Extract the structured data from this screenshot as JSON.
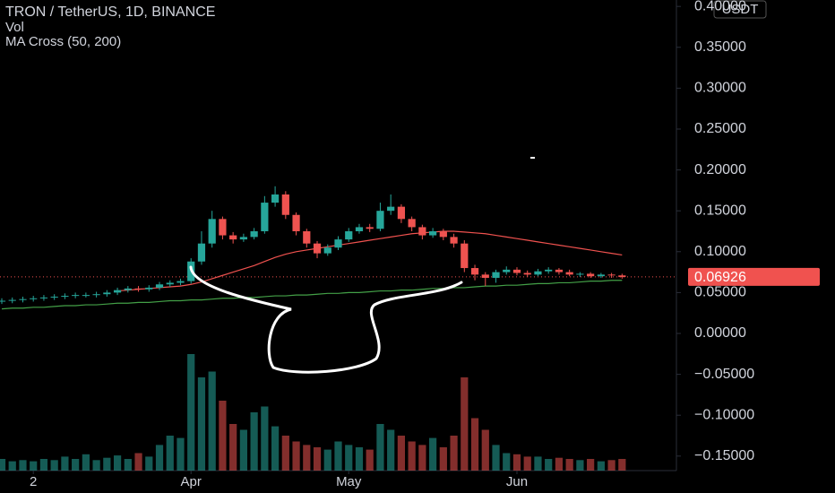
{
  "chart_data": {
    "type": "candlestick",
    "title": "TRON / TetherUS, 1D, BINANCE",
    "volume_label": "Vol",
    "indicator_label": "MA Cross (50, 200)",
    "currency": "USDT",
    "up_color": "#26a69a",
    "down_color": "#ef5350",
    "x": [
      0,
      2,
      4,
      6,
      8,
      10,
      12,
      14,
      16,
      18,
      20,
      22,
      24,
      26,
      28,
      30,
      32,
      34,
      36,
      38,
      40,
      42,
      44,
      46,
      48,
      50,
      52,
      54,
      56,
      58,
      60,
      62,
      64,
      66,
      68,
      70,
      72,
      74,
      76,
      78,
      80,
      82,
      84,
      86,
      88,
      90,
      92,
      94,
      96,
      98,
      100,
      102,
      104,
      106,
      108,
      110,
      112,
      114,
      116,
      118
    ],
    "open": [
      0.039,
      0.04,
      0.041,
      0.042,
      0.043,
      0.044,
      0.045,
      0.046,
      0.047,
      0.047,
      0.048,
      0.05,
      0.053,
      0.055,
      0.054,
      0.056,
      0.06,
      0.062,
      0.064,
      0.088,
      0.11,
      0.14,
      0.12,
      0.115,
      0.118,
      0.125,
      0.16,
      0.17,
      0.145,
      0.125,
      0.11,
      0.098,
      0.105,
      0.115,
      0.125,
      0.13,
      0.128,
      0.15,
      0.155,
      0.14,
      0.13,
      0.12,
      0.125,
      0.118,
      0.11,
      0.08,
      0.072,
      0.068,
      0.075,
      0.078,
      0.074,
      0.072,
      0.076,
      0.078,
      0.075,
      0.072,
      0.073,
      0.07,
      0.072,
      0.071
    ],
    "high": [
      0.043,
      0.044,
      0.045,
      0.046,
      0.047,
      0.048,
      0.049,
      0.05,
      0.05,
      0.051,
      0.053,
      0.056,
      0.058,
      0.058,
      0.059,
      0.063,
      0.065,
      0.067,
      0.092,
      0.125,
      0.15,
      0.143,
      0.124,
      0.122,
      0.129,
      0.168,
      0.18,
      0.174,
      0.148,
      0.128,
      0.113,
      0.109,
      0.119,
      0.129,
      0.134,
      0.134,
      0.16,
      0.17,
      0.158,
      0.143,
      0.133,
      0.129,
      0.128,
      0.122,
      0.114,
      0.084,
      0.075,
      0.078,
      0.082,
      0.081,
      0.077,
      0.079,
      0.081,
      0.08,
      0.078,
      0.075,
      0.075,
      0.074,
      0.074,
      0.073
    ],
    "low": [
      0.036,
      0.037,
      0.038,
      0.039,
      0.04,
      0.041,
      0.042,
      0.043,
      0.044,
      0.044,
      0.045,
      0.047,
      0.05,
      0.051,
      0.051,
      0.053,
      0.057,
      0.059,
      0.061,
      0.084,
      0.105,
      0.115,
      0.11,
      0.112,
      0.115,
      0.122,
      0.155,
      0.14,
      0.12,
      0.105,
      0.092,
      0.095,
      0.102,
      0.112,
      0.122,
      0.124,
      0.125,
      0.145,
      0.135,
      0.125,
      0.115,
      0.117,
      0.114,
      0.105,
      0.075,
      0.065,
      0.058,
      0.062,
      0.072,
      0.071,
      0.069,
      0.07,
      0.073,
      0.072,
      0.07,
      0.069,
      0.068,
      0.068,
      0.068,
      0.067
    ],
    "close": [
      0.04,
      0.041,
      0.042,
      0.043,
      0.044,
      0.045,
      0.046,
      0.047,
      0.047,
      0.048,
      0.05,
      0.053,
      0.055,
      0.054,
      0.056,
      0.06,
      0.062,
      0.064,
      0.088,
      0.11,
      0.14,
      0.12,
      0.115,
      0.118,
      0.125,
      0.16,
      0.17,
      0.145,
      0.125,
      0.11,
      0.098,
      0.105,
      0.115,
      0.125,
      0.13,
      0.128,
      0.15,
      0.155,
      0.14,
      0.13,
      0.12,
      0.125,
      0.118,
      0.11,
      0.08,
      0.072,
      0.068,
      0.075,
      0.078,
      0.074,
      0.072,
      0.076,
      0.078,
      0.075,
      0.072,
      0.073,
      0.07,
      0.072,
      0.071,
      0.069
    ],
    "volume": [
      10,
      8,
      9,
      8,
      10,
      9,
      12,
      10,
      14,
      9,
      11,
      13,
      10,
      15,
      12,
      22,
      30,
      28,
      100,
      80,
      85,
      60,
      40,
      35,
      50,
      55,
      38,
      30,
      25,
      22,
      20,
      18,
      25,
      22,
      20,
      18,
      40,
      35,
      30,
      25,
      22,
      28,
      20,
      30,
      80,
      45,
      35,
      22,
      15,
      14,
      12,
      12,
      10,
      11,
      10,
      9,
      10,
      8,
      9,
      10
    ],
    "lines": [
      {
        "color": "#f0524f",
        "values": [
          null,
          null,
          null,
          null,
          null,
          null,
          null,
          null,
          null,
          null,
          null,
          0.052,
          0.053,
          0.054,
          0.055,
          0.056,
          0.057,
          0.058,
          0.06,
          0.063,
          0.067,
          0.071,
          0.075,
          0.079,
          0.083,
          0.088,
          0.093,
          0.097,
          0.1,
          0.102,
          0.104,
          0.106,
          0.108,
          0.11,
          0.112,
          0.114,
          0.116,
          0.118,
          0.12,
          0.122,
          0.123,
          0.124,
          0.125,
          0.125,
          0.124,
          0.123,
          0.122,
          0.12,
          0.118,
          0.116,
          0.114,
          0.112,
          0.11,
          0.108,
          0.106,
          0.104,
          0.102,
          0.1,
          0.098,
          0.096
        ]
      },
      {
        "color": "#43a047",
        "values": [
          0.03,
          0.031,
          0.031,
          0.032,
          0.032,
          0.033,
          0.034,
          0.034,
          0.035,
          0.035,
          0.036,
          0.037,
          0.037,
          0.038,
          0.038,
          0.039,
          0.04,
          0.04,
          0.041,
          0.041,
          0.042,
          0.043,
          0.043,
          0.044,
          0.044,
          0.045,
          0.046,
          0.046,
          0.047,
          0.047,
          0.048,
          0.049,
          0.049,
          0.05,
          0.05,
          0.051,
          0.052,
          0.052,
          0.053,
          0.053,
          0.054,
          0.055,
          0.055,
          0.056,
          0.056,
          0.057,
          0.058,
          0.058,
          0.059,
          0.059,
          0.06,
          0.061,
          0.061,
          0.062,
          0.062,
          0.063,
          0.064,
          0.064,
          0.065,
          0.065
        ]
      }
    ],
    "current_price": 0.06926,
    "current_price_color": "#f0524f",
    "xlim": [
      0,
      128
    ],
    "xticks": [
      {
        "value": 6,
        "label": "2"
      },
      {
        "value": 36,
        "label": "Apr"
      },
      {
        "value": 66,
        "label": "May"
      },
      {
        "value": 98,
        "label": "Jun"
      }
    ],
    "ylim": [
      -0.165,
      0.405
    ],
    "yticks": [
      {
        "value": 0.4,
        "label": "0.40000"
      },
      {
        "value": 0.35,
        "label": "0.35000"
      },
      {
        "value": 0.3,
        "label": "0.30000"
      },
      {
        "value": 0.25,
        "label": "0.25000"
      },
      {
        "value": 0.2,
        "label": "0.20000"
      },
      {
        "value": 0.15,
        "label": "0.15000"
      },
      {
        "value": 0.1,
        "label": "0.10000"
      },
      {
        "value": 0.05,
        "label": "0.05000"
      },
      {
        "value": 0,
        "label": "0.00000"
      },
      {
        "value": -0.05,
        "label": "−0.05000"
      },
      {
        "value": -0.1,
        "label": "−0.10000"
      },
      {
        "value": -0.15,
        "label": "−0.15000"
      }
    ]
  }
}
